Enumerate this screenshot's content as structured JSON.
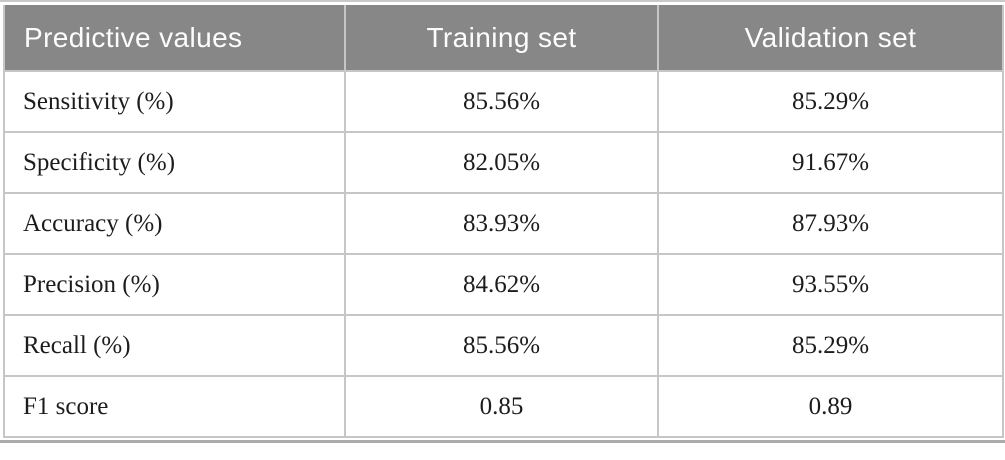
{
  "figure": {
    "header": {
      "metric_column": "Predictive values",
      "training_column": "Training set",
      "validation_column": "Validation set"
    },
    "rows": [
      {
        "metric": "Sensitivity (%)",
        "training": "85.56%",
        "validation": "85.29%"
      },
      {
        "metric": "Specificity (%)",
        "training": "82.05%",
        "validation": "91.67%"
      },
      {
        "metric": "Accuracy (%)",
        "training": "83.93%",
        "validation": "87.93%"
      },
      {
        "metric": "Precision (%)",
        "training": "84.62%",
        "validation": "93.55%"
      },
      {
        "metric": "Recall (%)",
        "training": "85.56%",
        "validation": "85.29%"
      },
      {
        "metric": "F1 score",
        "training": "0.85",
        "validation": "0.89"
      }
    ],
    "colors": {
      "header_bg": "#878787",
      "header_text": "#fdfdfd",
      "body_text": "#1c1c1c",
      "border": "#c6c6c6",
      "top_rule": "#c9c9c9",
      "bottom_rule": "#ababab",
      "page_bg": "#ffffff"
    }
  },
  "chart_data": {
    "type": "table",
    "title": "",
    "columns": [
      "Predictive values",
      "Training set",
      "Validation set"
    ],
    "rows": [
      [
        "Sensitivity (%)",
        "85.56%",
        "85.29%"
      ],
      [
        "Specificity (%)",
        "82.05%",
        "91.67%"
      ],
      [
        "Accuracy (%)",
        "83.93%",
        "87.93%"
      ],
      [
        "Precision (%)",
        "84.62%",
        "93.55%"
      ],
      [
        "Recall (%)",
        "85.56%",
        "85.29%"
      ],
      [
        "F1 score",
        "0.85",
        "0.89"
      ]
    ]
  }
}
